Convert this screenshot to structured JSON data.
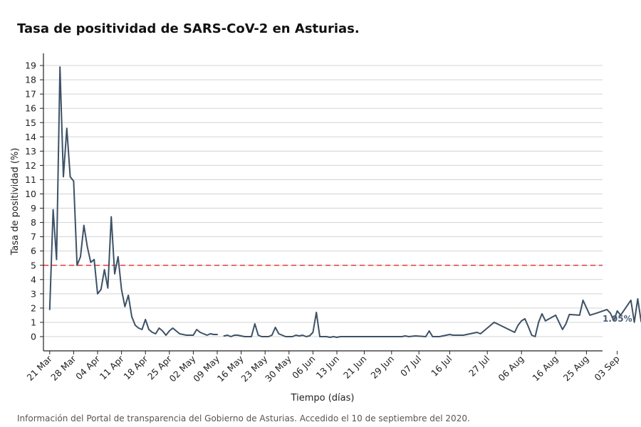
{
  "page": {
    "title": "Tasa de positividad de SARS-CoV-2 en Asturias.",
    "footnote": "Información del Portal de transparencia del Gobierno de Asturias. Accedido el 10 de septiembre del 2020."
  },
  "colors": {
    "line": "#3d5166",
    "threshold": "#e8393a",
    "grid": "#d3d3d3",
    "axis": "#222222",
    "end_label": "#4a5d73"
  },
  "chart_data": {
    "type": "line",
    "title": "Tasa de positividad de SARS-CoV-2 en Asturias.",
    "xlabel": "Tiempo (días)",
    "ylabel": "Tasa de positividad (%)",
    "x_range": [
      "2020-03-20",
      "2020-09-09"
    ],
    "ylim": [
      -1,
      19.9
    ],
    "y_ticks": [
      0,
      1,
      2,
      3,
      4,
      5,
      6,
      7,
      8,
      9,
      10,
      11,
      12,
      13,
      14,
      15,
      16,
      17,
      18,
      19
    ],
    "x_ticks": [
      {
        "date": "2020-03-21",
        "label": "21 Mar"
      },
      {
        "date": "2020-03-28",
        "label": "28 Mar"
      },
      {
        "date": "2020-04-04",
        "label": "04 Apr"
      },
      {
        "date": "2020-04-11",
        "label": "11 Apr"
      },
      {
        "date": "2020-04-18",
        "label": "18 Apr"
      },
      {
        "date": "2020-04-25",
        "label": "25 Apr"
      },
      {
        "date": "2020-05-02",
        "label": "02 May"
      },
      {
        "date": "2020-05-09",
        "label": "09 May"
      },
      {
        "date": "2020-05-16",
        "label": "16 May"
      },
      {
        "date": "2020-05-23",
        "label": "23 May"
      },
      {
        "date": "2020-05-30",
        "label": "30 May"
      },
      {
        "date": "2020-06-06",
        "label": "06 Jun"
      },
      {
        "date": "2020-06-13",
        "label": "13 Jun"
      },
      {
        "date": "2020-06-21",
        "label": "21 Jun"
      },
      {
        "date": "2020-06-29",
        "label": "29 Jun"
      },
      {
        "date": "2020-07-07",
        "label": "07 Jul"
      },
      {
        "date": "2020-07-16",
        "label": "16 Jul"
      },
      {
        "date": "2020-07-27",
        "label": "27 Jul"
      },
      {
        "date": "2020-08-06",
        "label": "06 Aug"
      },
      {
        "date": "2020-08-16",
        "label": "16 Aug"
      },
      {
        "date": "2020-08-25",
        "label": "25 Aug"
      },
      {
        "date": "2020-09-03",
        "label": "03 Sep"
      }
    ],
    "grid": true,
    "threshold": {
      "value": 5,
      "style": "dashed"
    },
    "end_label": "1.05%",
    "series": [
      {
        "segments": [
          [
            [
              "2020-03-21",
              1.9
            ],
            [
              "2020-03-22",
              8.9
            ],
            [
              "2020-03-23",
              5.4
            ],
            [
              "2020-03-24",
              18.9
            ],
            [
              "2020-03-25",
              11.2
            ],
            [
              "2020-03-26",
              14.6
            ],
            [
              "2020-03-27",
              11.2
            ],
            [
              "2020-03-28",
              10.9
            ],
            [
              "2020-03-29",
              5.0
            ],
            [
              "2020-03-30",
              5.6
            ],
            [
              "2020-03-31",
              7.8
            ],
            [
              "2020-04-01",
              6.3
            ],
            [
              "2020-04-02",
              5.2
            ],
            [
              "2020-04-03",
              5.4
            ],
            [
              "2020-04-04",
              3.0
            ],
            [
              "2020-04-05",
              3.3
            ],
            [
              "2020-04-06",
              4.7
            ],
            [
              "2020-04-07",
              3.4
            ],
            [
              "2020-04-08",
              8.4
            ],
            [
              "2020-04-09",
              4.4
            ],
            [
              "2020-04-10",
              5.6
            ],
            [
              "2020-04-11",
              3.3
            ],
            [
              "2020-04-12",
              2.1
            ],
            [
              "2020-04-13",
              2.9
            ],
            [
              "2020-04-14",
              1.4
            ],
            [
              "2020-04-15",
              0.8
            ],
            [
              "2020-04-16",
              0.6
            ],
            [
              "2020-04-17",
              0.5
            ],
            [
              "2020-04-18",
              1.2
            ],
            [
              "2020-04-19",
              0.5
            ],
            [
              "2020-04-20",
              0.3
            ],
            [
              "2020-04-21",
              0.2
            ],
            [
              "2020-04-22",
              0.6
            ],
            [
              "2020-04-23",
              0.4
            ],
            [
              "2020-04-24",
              0.1
            ],
            [
              "2020-04-25",
              0.4
            ],
            [
              "2020-04-26",
              0.6
            ],
            [
              "2020-04-27",
              0.4
            ],
            [
              "2020-04-28",
              0.2
            ],
            [
              "2020-04-30",
              0.1
            ],
            [
              "2020-05-02",
              0.1
            ],
            [
              "2020-05-03",
              0.5
            ],
            [
              "2020-05-04",
              0.3
            ],
            [
              "2020-05-06",
              0.1
            ],
            [
              "2020-05-07",
              0.2
            ],
            [
              "2020-05-08",
              0.15
            ],
            [
              "2020-05-09",
              0.15
            ]
          ],
          [
            [
              "2020-05-11",
              0.05
            ],
            [
              "2020-05-12",
              0.1
            ],
            [
              "2020-05-13",
              0.0
            ],
            [
              "2020-05-14",
              0.1
            ],
            [
              "2020-05-15",
              0.1
            ],
            [
              "2020-05-17",
              0.0
            ],
            [
              "2020-05-19",
              0.0
            ],
            [
              "2020-05-20",
              0.9
            ],
            [
              "2020-05-21",
              0.1
            ],
            [
              "2020-05-22",
              0.0
            ],
            [
              "2020-05-24",
              0.0
            ],
            [
              "2020-05-25",
              0.1
            ],
            [
              "2020-05-26",
              0.65
            ],
            [
              "2020-05-27",
              0.2
            ],
            [
              "2020-05-29",
              0.0
            ],
            [
              "2020-05-31",
              0.0
            ],
            [
              "2020-06-01",
              0.1
            ],
            [
              "2020-06-02",
              0.05
            ],
            [
              "2020-06-03",
              0.1
            ],
            [
              "2020-06-04",
              0.0
            ],
            [
              "2020-06-05",
              0.05
            ],
            [
              "2020-06-06",
              0.3
            ],
            [
              "2020-06-07",
              1.7
            ],
            [
              "2020-06-08",
              0.0
            ],
            [
              "2020-06-10",
              0.0
            ],
            [
              "2020-06-11",
              -0.05
            ],
            [
              "2020-06-12",
              0.0
            ],
            [
              "2020-06-13",
              -0.05
            ],
            [
              "2020-06-14",
              0.0
            ],
            [
              "2020-06-20",
              0.0
            ],
            [
              "2020-06-28",
              0.0
            ],
            [
              "2020-07-02",
              0.0
            ],
            [
              "2020-07-03",
              0.05
            ],
            [
              "2020-07-04",
              0.0
            ],
            [
              "2020-07-06",
              0.05
            ],
            [
              "2020-07-09",
              0.0
            ],
            [
              "2020-07-10",
              0.4
            ],
            [
              "2020-07-11",
              0.0
            ],
            [
              "2020-07-13",
              0.0
            ],
            [
              "2020-07-15",
              0.1
            ],
            [
              "2020-07-16",
              0.15
            ],
            [
              "2020-07-17",
              0.1
            ],
            [
              "2020-07-20",
              0.1
            ],
            [
              "2020-07-22",
              0.2
            ],
            [
              "2020-07-24",
              0.3
            ],
            [
              "2020-07-25",
              0.2
            ],
            [
              "2020-07-27",
              0.6
            ],
            [
              "2020-07-29",
              1.0
            ],
            [
              "2020-08-04",
              0.3
            ],
            [
              "2020-08-05",
              0.8
            ],
            [
              "2020-08-06",
              1.1
            ],
            [
              "2020-08-07",
              1.25
            ],
            [
              "2020-08-08",
              0.7
            ],
            [
              "2020-08-09",
              0.1
            ],
            [
              "2020-08-10",
              0.0
            ],
            [
              "2020-08-11",
              1.0
            ],
            [
              "2020-08-12",
              1.6
            ],
            [
              "2020-08-13",
              1.1
            ],
            [
              "2020-08-16",
              1.5
            ],
            [
              "2020-08-18",
              0.5
            ],
            [
              "2020-08-19",
              0.9
            ],
            [
              "2020-08-20",
              1.55
            ],
            [
              "2020-08-23",
              1.5
            ],
            [
              "2020-08-24",
              2.55
            ],
            [
              "2020-08-26",
              1.5
            ],
            [
              "2020-08-28",
              1.65
            ],
            [
              "2020-08-31",
              1.9
            ],
            [
              "2020-09-01",
              1.65
            ],
            [
              "2020-09-02",
              1.1
            ],
            [
              "2020-09-03",
              1.8
            ],
            [
              "2020-09-04",
              1.5
            ],
            [
              "2020-09-07",
              2.55
            ],
            [
              "2020-09-08",
              1.0
            ],
            [
              "2020-09-09",
              2.65
            ],
            [
              "2020-09-10",
              1.05
            ]
          ]
        ]
      }
    ]
  }
}
